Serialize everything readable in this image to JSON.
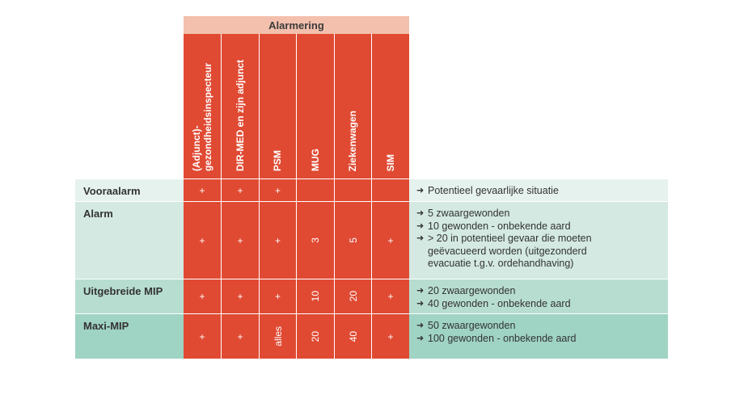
{
  "header": {
    "title": "Alarmering"
  },
  "columns": [
    {
      "title_line1": "(Adjunct)-",
      "title_line2": "gezondheidsinspecteur"
    },
    {
      "title_line1": "DIR-MED en zijn adjunct",
      "title_line2": ""
    },
    {
      "title_line1": "PSM",
      "title_line2": ""
    },
    {
      "title_line1": "MUG",
      "title_line2": ""
    },
    {
      "title_line1": "Ziekenwagen",
      "title_line2": ""
    },
    {
      "title_line1": "SIM",
      "title_line2": ""
    }
  ],
  "rows": [
    {
      "label": "Vooraalarm",
      "cells": [
        "+",
        "+",
        "+",
        "",
        "",
        ""
      ],
      "desc_arrow": "➜",
      "desc": [
        "Potentieel gevaarlijke situatie"
      ]
    },
    {
      "label": "Alarm",
      "cells": [
        "+",
        "+",
        "+",
        "3",
        "5",
        "+"
      ],
      "desc_arrow": "➜",
      "desc": [
        "5 zwaargewonden",
        "10 gewonden - onbekende aard",
        "> 20 in potentieel gevaar die moeten",
        "geëvacueerd worden (uitgezonderd",
        "evacuatie t.g.v. ordehandhaving)"
      ]
    },
    {
      "label": "Uitgebreide MIP",
      "cells": [
        "+",
        "+",
        "+",
        "10",
        "20",
        "+"
      ],
      "desc_arrow": "➜",
      "desc": [
        "20 zwaargewonden",
        "40 gewonden - onbekende aard"
      ]
    },
    {
      "label": "Maxi-MIP",
      "cells": [
        "+",
        "+",
        "alles",
        "20",
        "40",
        "+"
      ],
      "desc_arrow": "➜",
      "desc": [
        "50 zwaargewonden",
        "100 gewonden - onbekende aard"
      ]
    }
  ],
  "colors": {
    "header_band": "#f3c0ad",
    "red_columns": "#e04a33",
    "row1": "#e6f2ee",
    "row2": "#d3e9e1",
    "row3": "#b7ddd1",
    "row4": "#9fd3c3"
  }
}
